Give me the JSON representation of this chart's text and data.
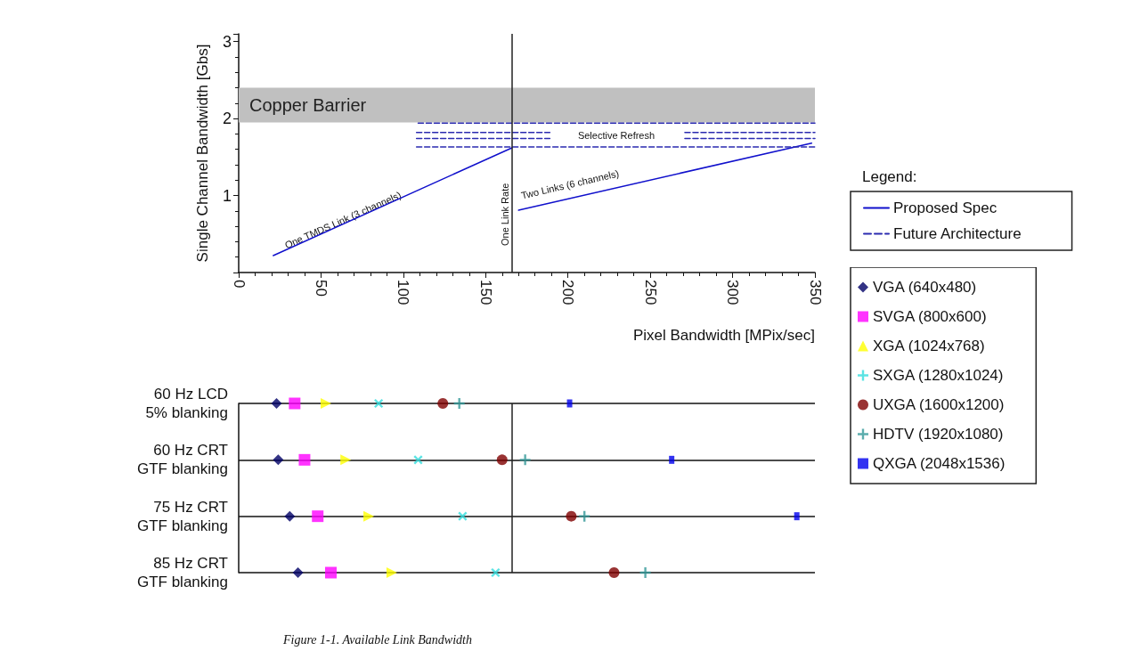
{
  "chart_data": [
    {
      "type": "line",
      "xlabel": "Pixel Bandwidth [MPix/sec]",
      "ylabel": "Single Channel Bandwidth [Gbs]",
      "legend_title": "Legend:",
      "legend": "right",
      "xlim": [
        0,
        350
      ],
      "xticks": [
        0,
        50,
        100,
        150,
        200,
        250,
        300,
        350
      ],
      "ylim": [
        0,
        3.1
      ],
      "yticks": [
        {
          "value": 0,
          "label": null
        },
        1,
        2,
        3
      ],
      "series": [
        {
          "name": "Proposed Spec",
          "color": "#1010cc",
          "line_style": "solid",
          "x": [
            21,
            166,
            168,
            170,
            348
          ],
          "values": [
            0.22,
            1.62,
            null,
            0.81,
            1.68
          ]
        },
        {
          "name": "Future Architecture",
          "color": "#2a2ab0",
          "line_style": "dashed",
          "x": [
            109,
            350
          ],
          "values": [
            1.94,
            1.94
          ]
        },
        {
          "color": "#2a2ab0",
          "line_style": "dashed",
          "x": [
            108,
            189,
            230,
            271,
            350
          ],
          "values": [
            1.82,
            1.82,
            null,
            1.82,
            1.82
          ]
        },
        {
          "color": "#2a2ab0",
          "line_style": "dashed",
          "x": [
            108,
            189,
            230,
            271,
            350
          ],
          "values": [
            1.74,
            1.74,
            null,
            1.74,
            1.74
          ]
        },
        {
          "color": "#2a2ab0",
          "line_style": "dashed",
          "x": [
            108,
            350
          ],
          "values": [
            1.63,
            1.63
          ]
        }
      ],
      "bands": [
        {
          "axis": "y",
          "from": 1.95,
          "to": 2.4,
          "label": "Copper Barrier",
          "color": "#c0c0c0"
        }
      ],
      "ref_lines": [
        {
          "axis": "x",
          "value": 166,
          "label": "One Link Rate"
        }
      ],
      "annotations": [
        "One TMDS Link (3 channels)",
        "Selective Refresh",
        "Two Links (6 channels)"
      ]
    },
    {
      "type": "scatter",
      "orientation": "horizontal",
      "legend": "right",
      "grid": "y",
      "tick_labels": "y",
      "xlim": [
        0,
        350
      ],
      "categories": [
        "60 Hz LCD\n5% blanking",
        "60 Hz CRT\nGTF blanking",
        "75 Hz CRT\nGTF blanking",
        "85 Hz CRT\nGTF blanking"
      ],
      "series": [
        {
          "name": "VGA (640x480)",
          "color": "#000066",
          "marker": "diamond",
          "values": [
            23,
            24,
            31,
            36
          ]
        },
        {
          "name": "SVGA (800x600)",
          "color": "#ff00ff",
          "marker": "square",
          "values": [
            34,
            40,
            48,
            56
          ]
        },
        {
          "name": "XGA (1024x768)",
          "color": "#ffff00",
          "marker": "triangle",
          "values": [
            53,
            65,
            79,
            93
          ]
        },
        {
          "name": "SXGA (1280x1024)",
          "color": "#33dddd",
          "marker": "x",
          "values": [
            85,
            109,
            136,
            156
          ]
        },
        {
          "name": "UXGA (1600x1200)",
          "color": "#800000",
          "marker": "circle",
          "values": [
            124,
            160,
            202,
            228
          ]
        },
        {
          "name": "HDTV (1920x1080)",
          "color": "#339999",
          "marker": "cross",
          "values": [
            134,
            174,
            210,
            247
          ]
        },
        {
          "name": "QXGA (2048x1536)",
          "color": "#0000ee",
          "marker": "square",
          "values": [
            201,
            263,
            339,
            null
          ]
        }
      ],
      "ref_lines": [
        {
          "axis": "x",
          "value": 166
        }
      ],
      "annotations": [
        "Figure 1-1. Available Link Bandwidth"
      ]
    }
  ]
}
